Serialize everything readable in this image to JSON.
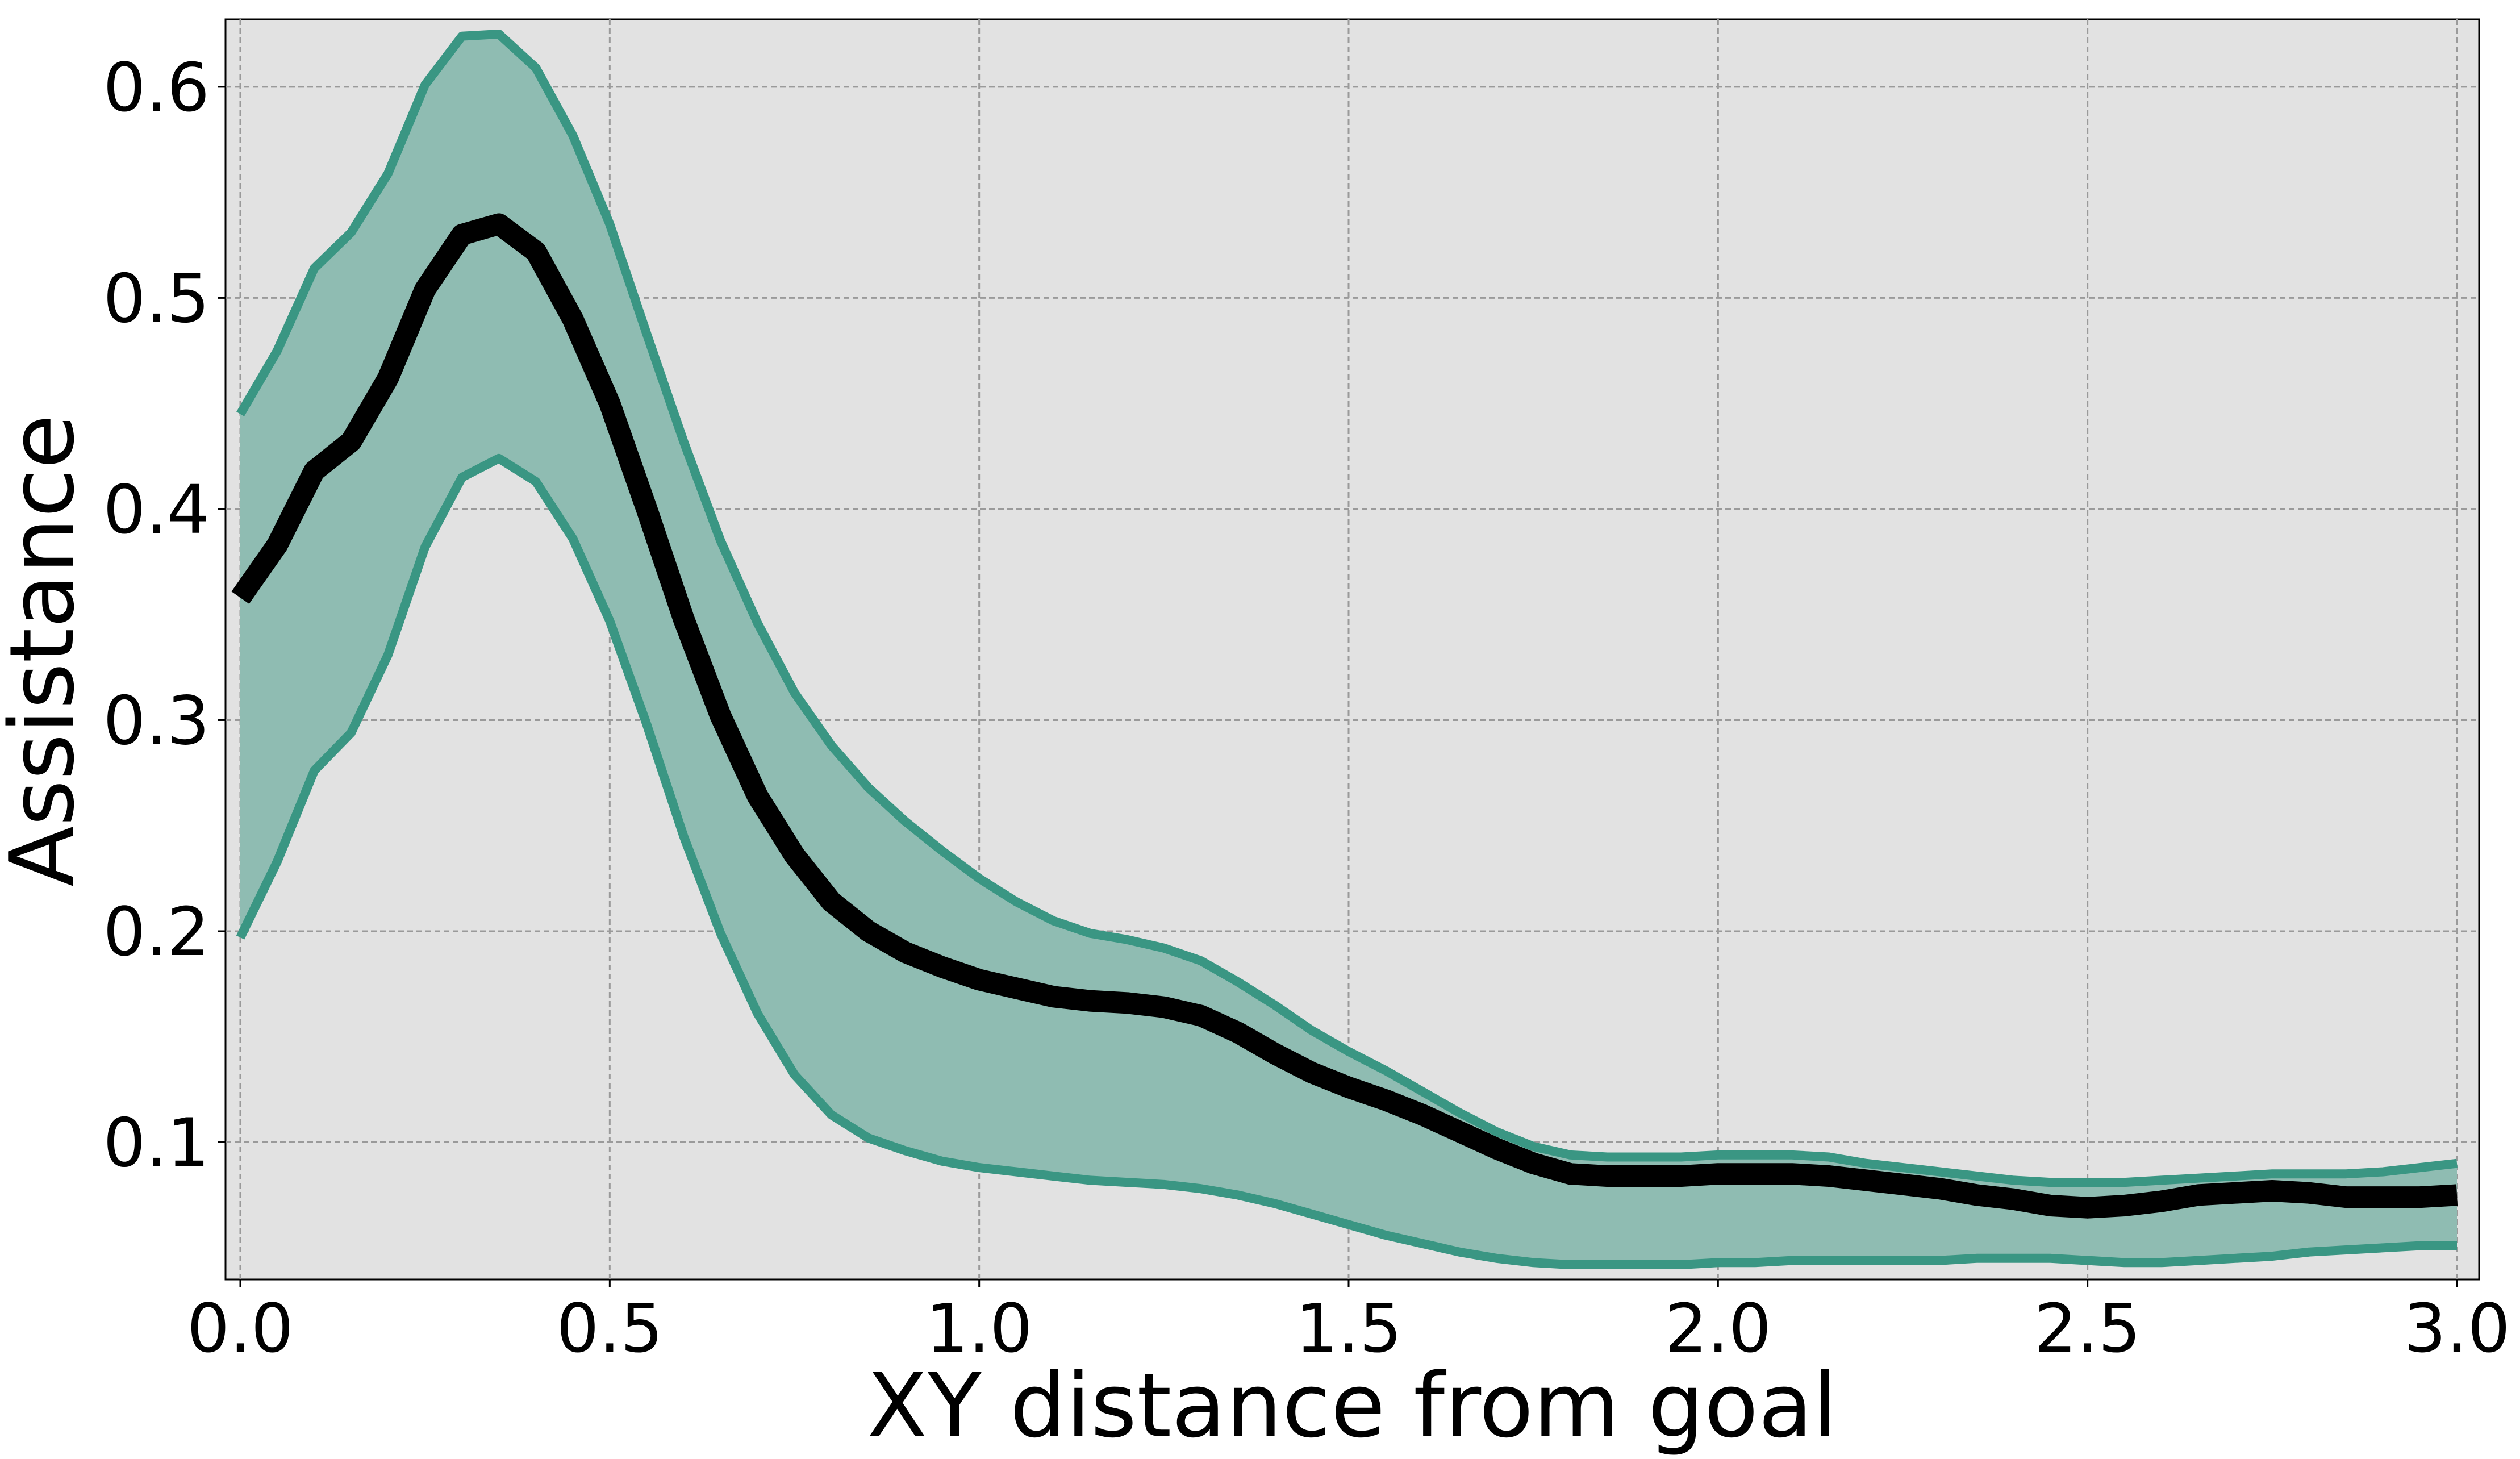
{
  "chart_data": {
    "type": "line",
    "title": "",
    "xlabel": "XY distance from goal",
    "ylabel": "Assistance",
    "xlim": [
      -0.02,
      3.03
    ],
    "ylim": [
      0.035,
      0.632
    ],
    "grid": true,
    "legend": "none",
    "x_ticks": [
      0.0,
      0.5,
      1.0,
      1.5,
      2.0,
      2.5,
      3.0
    ],
    "x_tick_labels": [
      "0.0",
      "0.5",
      "1.0",
      "1.5",
      "2.0",
      "2.5",
      "3.0"
    ],
    "y_ticks": [
      0.1,
      0.2,
      0.3,
      0.4,
      0.5,
      0.6
    ],
    "y_tick_labels": [
      "0.1",
      "0.2",
      "0.3",
      "0.4",
      "0.5",
      "0.6"
    ],
    "colors": {
      "background": "#e2e2e2",
      "mean_line": "#000000",
      "band_fill": "#8fbcb2",
      "band_edge": "#3a9683",
      "grid": "#9a9a9a"
    },
    "x": [
      0.0,
      0.05,
      0.1,
      0.15,
      0.2,
      0.25,
      0.3,
      0.35,
      0.4,
      0.45,
      0.5,
      0.55,
      0.6,
      0.65,
      0.7,
      0.75,
      0.8,
      0.85,
      0.9,
      0.95,
      1.0,
      1.05,
      1.1,
      1.15,
      1.2,
      1.25,
      1.3,
      1.35,
      1.4,
      1.45,
      1.5,
      1.55,
      1.6,
      1.65,
      1.7,
      1.75,
      1.8,
      1.85,
      1.9,
      1.95,
      2.0,
      2.05,
      2.1,
      2.15,
      2.2,
      2.25,
      2.3,
      2.35,
      2.4,
      2.45,
      2.5,
      2.55,
      2.6,
      2.65,
      2.7,
      2.75,
      2.8,
      2.85,
      2.9,
      2.95,
      3.0
    ],
    "series": [
      {
        "role": "mean",
        "values": [
          0.358,
          0.383,
          0.418,
          0.432,
          0.462,
          0.504,
          0.53,
          0.535,
          0.522,
          0.49,
          0.45,
          0.4,
          0.348,
          0.302,
          0.264,
          0.236,
          0.214,
          0.2,
          0.19,
          0.183,
          0.177,
          0.173,
          0.169,
          0.167,
          0.166,
          0.164,
          0.16,
          0.152,
          0.142,
          0.133,
          0.126,
          0.12,
          0.113,
          0.105,
          0.097,
          0.09,
          0.085,
          0.084,
          0.084,
          0.084,
          0.085,
          0.085,
          0.085,
          0.084,
          0.082,
          0.08,
          0.078,
          0.075,
          0.073,
          0.07,
          0.069,
          0.07,
          0.072,
          0.075,
          0.076,
          0.077,
          0.076,
          0.074,
          0.074,
          0.074,
          0.075
        ]
      },
      {
        "role": "upper",
        "values": [
          0.445,
          0.475,
          0.514,
          0.531,
          0.559,
          0.601,
          0.624,
          0.625,
          0.609,
          0.577,
          0.535,
          0.483,
          0.432,
          0.385,
          0.346,
          0.313,
          0.288,
          0.268,
          0.252,
          0.238,
          0.225,
          0.214,
          0.205,
          0.199,
          0.196,
          0.192,
          0.186,
          0.176,
          0.165,
          0.153,
          0.143,
          0.134,
          0.124,
          0.114,
          0.105,
          0.098,
          0.094,
          0.093,
          0.093,
          0.093,
          0.094,
          0.094,
          0.094,
          0.093,
          0.09,
          0.088,
          0.086,
          0.084,
          0.082,
          0.081,
          0.081,
          0.081,
          0.082,
          0.083,
          0.084,
          0.085,
          0.085,
          0.085,
          0.086,
          0.088,
          0.09
        ]
      },
      {
        "role": "lower",
        "values": [
          0.197,
          0.233,
          0.276,
          0.294,
          0.331,
          0.382,
          0.415,
          0.424,
          0.413,
          0.386,
          0.347,
          0.298,
          0.245,
          0.199,
          0.161,
          0.132,
          0.113,
          0.102,
          0.096,
          0.091,
          0.088,
          0.086,
          0.084,
          0.082,
          0.081,
          0.08,
          0.078,
          0.075,
          0.071,
          0.066,
          0.061,
          0.056,
          0.052,
          0.048,
          0.045,
          0.043,
          0.042,
          0.042,
          0.042,
          0.042,
          0.043,
          0.043,
          0.044,
          0.044,
          0.044,
          0.044,
          0.044,
          0.045,
          0.045,
          0.045,
          0.044,
          0.043,
          0.043,
          0.044,
          0.045,
          0.046,
          0.048,
          0.049,
          0.05,
          0.051,
          0.051
        ]
      }
    ]
  }
}
